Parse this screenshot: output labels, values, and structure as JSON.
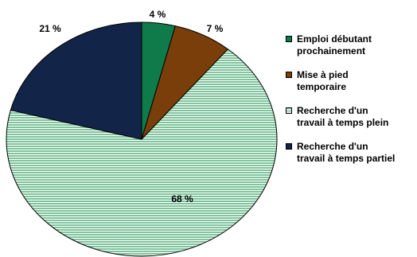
{
  "chart_data": {
    "type": "pie",
    "categories": [
      "Emploi débutant\nprochainement",
      "Mise à pied\ntemporaire",
      "Recherche d'un\ntravail à temps plein",
      "Recherche d'un\ntravail à temps partiel"
    ],
    "values": [
      4,
      7,
      68,
      21
    ],
    "value_labels": [
      "4 %",
      "7 %",
      "68 %",
      "21 %"
    ],
    "colors": [
      "#0f7a4a",
      "#7a3e0a",
      "#9bd3b3",
      "#122448"
    ],
    "patterns": [
      "solid",
      "solid",
      "horizontal-stripes",
      "solid"
    ],
    "start_angle_deg": 0,
    "direction": "clockwise",
    "legend_position": "right"
  }
}
